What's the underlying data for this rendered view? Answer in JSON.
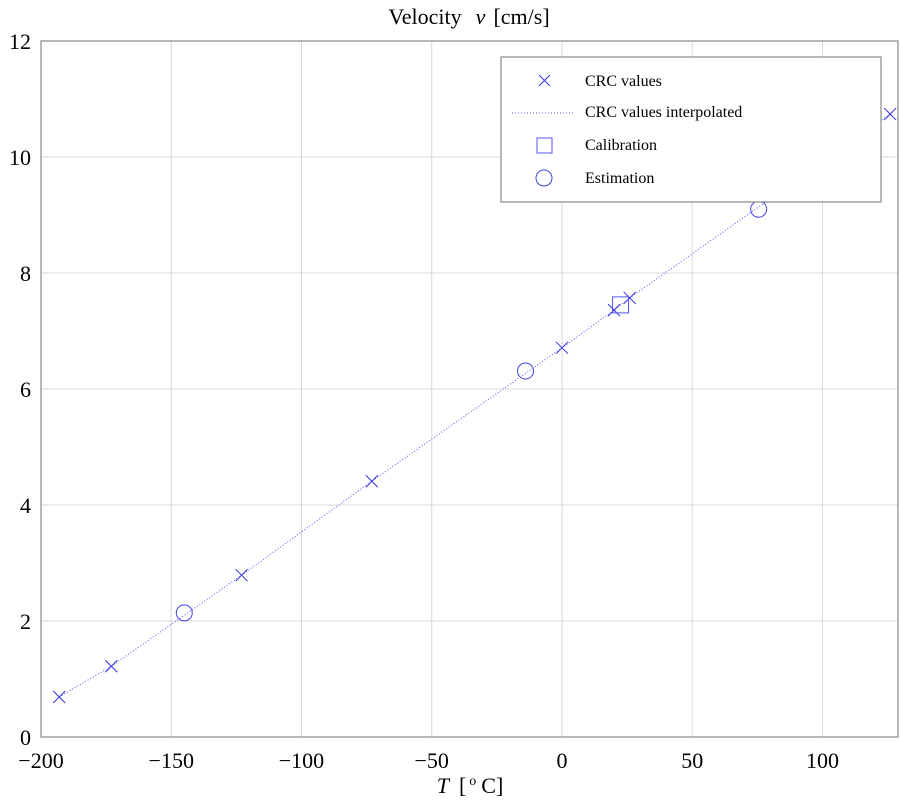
{
  "chart_data": {
    "type": "scatter",
    "title": "Velocity  v [cm/s]",
    "title_plain": "Velocity",
    "title_var": "v",
    "title_unit": "[cm/s]",
    "xlabel_var": "T",
    "xlabel_unit": "[ o C]",
    "xlabel_open": "[",
    "xlabel_sup": "o",
    "xlabel_close": "C]",
    "xlim": [
      -200,
      129
    ],
    "ylim": [
      0,
      12
    ],
    "xticks": [
      -200,
      -150,
      -100,
      -50,
      0,
      50,
      100
    ],
    "yticks": [
      0,
      2,
      4,
      6,
      8,
      10,
      12
    ],
    "xtick_labels": [
      "−200",
      "−150",
      "−100",
      "−50",
      "0",
      "50",
      "100"
    ],
    "ytick_labels": [
      "0",
      "2",
      "4",
      "6",
      "8",
      "10",
      "12"
    ],
    "grid": true,
    "legend_position": "top-right",
    "series": [
      {
        "name": "CRC values",
        "marker": "x",
        "color": "#3333dd",
        "x": [
          -193,
          -173,
          -123,
          -73,
          0,
          20,
          26,
          126
        ],
        "y": [
          0.69,
          1.22,
          2.79,
          4.41,
          6.71,
          7.36,
          7.57,
          10.74
        ]
      },
      {
        "name": "CRC values interpolated",
        "marker": "dotted-line",
        "color": "#5555ee",
        "x": [
          -193,
          -173,
          -123,
          -73,
          0,
          20,
          26,
          126
        ],
        "y": [
          0.69,
          1.22,
          2.79,
          4.41,
          6.71,
          7.36,
          7.57,
          10.74
        ]
      },
      {
        "name": "Calibration",
        "marker": "square",
        "color": "#5555ee",
        "x": [
          22.5
        ],
        "y": [
          7.45
        ]
      },
      {
        "name": "Estimation",
        "marker": "circle",
        "color": "#4444dd",
        "x": [
          -145,
          -14,
          75.5
        ],
        "y": [
          2.14,
          6.31,
          9.1
        ]
      }
    ]
  }
}
